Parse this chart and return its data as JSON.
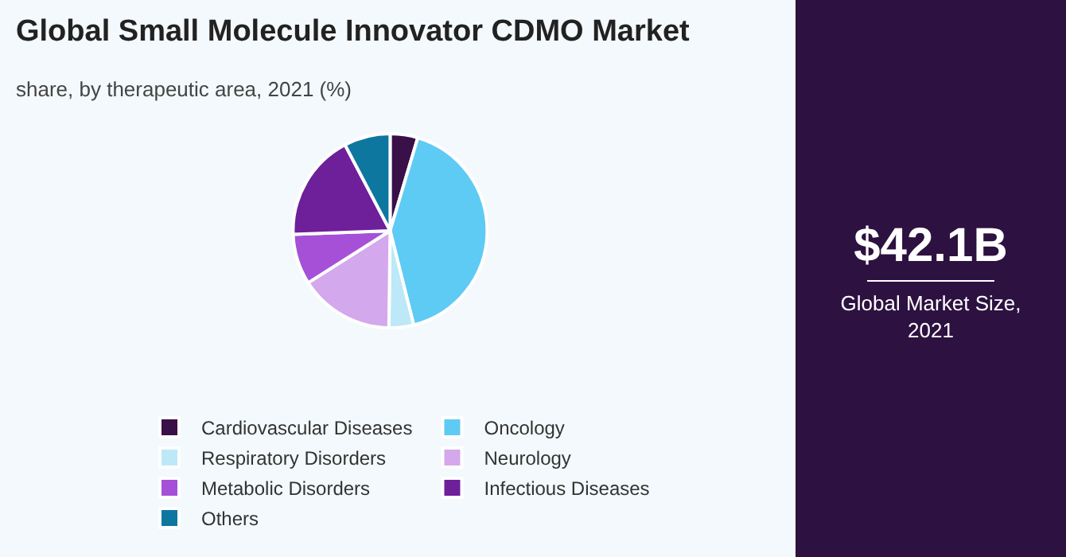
{
  "chart_data": {
    "type": "pie",
    "title": "Global Small Molecule Innovator CDMO Market",
    "subtitle": "share, by therapeutic area, 2021 (%)",
    "categories": [
      "Cardiovascular Diseases",
      "Oncology",
      "Respiratory Disorders",
      "Neurology",
      "Metabolic Disorders",
      "Infectious Diseases",
      "Others"
    ],
    "values": [
      4.6,
      41.5,
      4.1,
      15.8,
      8.4,
      17.9,
      7.7
    ],
    "colors": [
      "#3a1049",
      "#5ecbf5",
      "#bde8f8",
      "#d4a8ec",
      "#a550d6",
      "#6e1f9a",
      "#0d77a0"
    ],
    "legend": "bottom",
    "annotations": [
      "$42.1B",
      "Global Market Size, 2021"
    ]
  }
}
